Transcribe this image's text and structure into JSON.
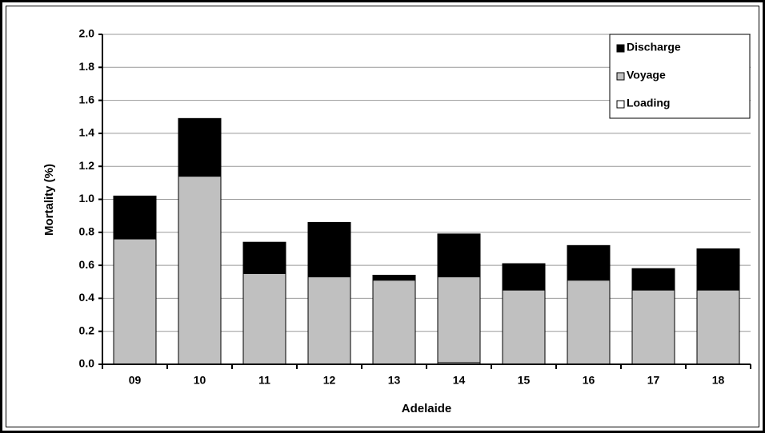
{
  "chart_data": {
    "type": "stacked_bar",
    "x_label": "Adelaide",
    "y_label": "Mortality  (%)",
    "categories": [
      "09",
      "10",
      "11",
      "12",
      "13",
      "14",
      "15",
      "16",
      "17",
      "18"
    ],
    "series": [
      {
        "name": "Loading",
        "color": "#ffffff",
        "values": [
          0,
          0,
          0,
          0,
          0,
          0.01,
          0,
          0,
          0,
          0
        ]
      },
      {
        "name": "Voyage",
        "color": "#c0c0c0",
        "values": [
          0.76,
          1.14,
          0.55,
          0.53,
          0.51,
          0.52,
          0.45,
          0.51,
          0.45,
          0.45
        ]
      },
      {
        "name": "Discharge",
        "color": "#000000",
        "values": [
          0.26,
          0.35,
          0.19,
          0.33,
          0.03,
          0.26,
          0.16,
          0.21,
          0.13,
          0.25
        ]
      }
    ],
    "ylim": [
      0,
      2
    ],
    "yticks": [
      {
        "value": 0,
        "label": "0.0"
      },
      {
        "value": 0.2,
        "label": "0.2"
      },
      {
        "value": 0.4,
        "label": "0.4"
      },
      {
        "value": 0.6,
        "label": "0.6"
      },
      {
        "value": 0.8,
        "label": "0.8"
      },
      {
        "value": 1,
        "label": "1.0"
      },
      {
        "value": 1.2,
        "label": "1.2"
      },
      {
        "value": 1.4,
        "label": "1.4"
      },
      {
        "value": 1.6,
        "label": "1.6"
      },
      {
        "value": 1.8,
        "label": "1.8"
      },
      {
        "value": 2,
        "label": "2.0"
      }
    ],
    "grid": true,
    "legend": "upper right"
  }
}
